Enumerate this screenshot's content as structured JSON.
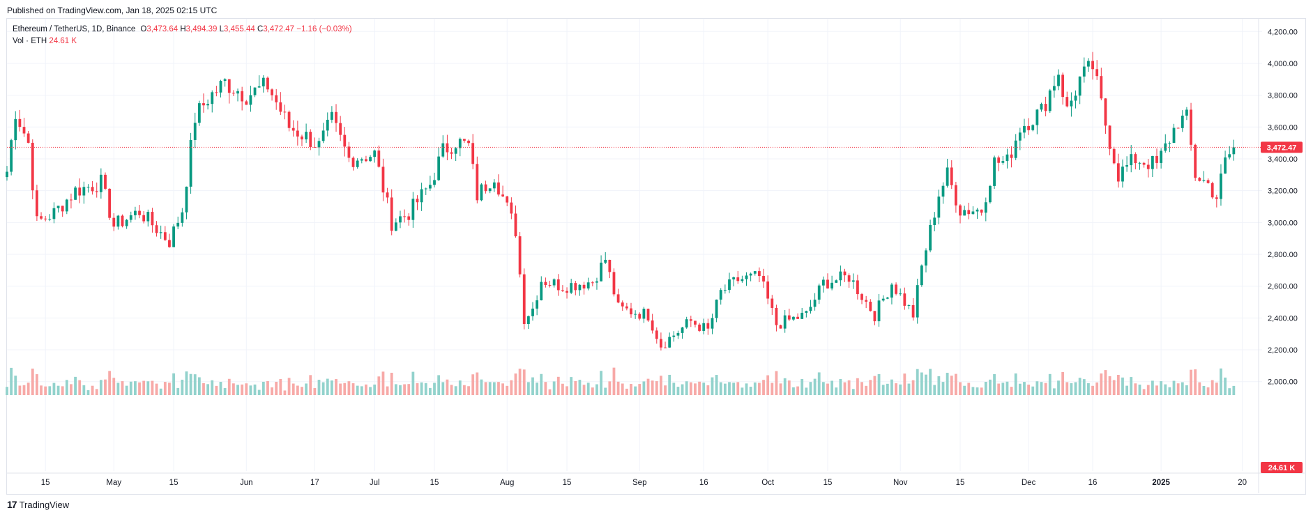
{
  "published": "Published on TradingView.com, Jan 18, 2025 02:15 UTC",
  "legend": {
    "symbol": "Ethereum / TetherUS, 1D, Binance",
    "o_label": "O",
    "o": "3,473.64",
    "h_label": "H",
    "h": "3,494.39",
    "l_label": "L",
    "l": "3,455.44",
    "c_label": "C",
    "c": "3,472.47",
    "change": "−1.16 (−0.03%)",
    "vol_label": "Vol · ETH",
    "vol": "24.61 K"
  },
  "footer": {
    "logo_mark": "17",
    "logo_text": "TradingView"
  },
  "colors": {
    "up": "#089981",
    "down": "#f23645",
    "up_vol": "#92d2cc",
    "down_vol": "#f7a9a7",
    "grid": "#f0f3fa",
    "axis_text": "#131722",
    "price_line": "#f23645"
  },
  "chart_data": {
    "type": "candlestick",
    "symbol": "Ethereum / TetherUS",
    "interval": "1D",
    "exchange": "Binance",
    "y_axis": {
      "range": [
        1920,
        4280
      ],
      "ticks": [
        "2,000.00",
        "2,200.00",
        "2,400.00",
        "2,600.00",
        "2,800.00",
        "3,000.00",
        "3,200.00",
        "3,400.00",
        "3,600.00",
        "3,800.00",
        "4,000.00",
        "4,200.00"
      ]
    },
    "x_axis": {
      "range_start": "2024-04-06",
      "range_end": "2025-01-23",
      "ticks": [
        {
          "label": "15",
          "date": "2024-04-15",
          "bold": false
        },
        {
          "label": "May",
          "date": "2024-05-01",
          "bold": false
        },
        {
          "label": "15",
          "date": "2024-05-15",
          "bold": false
        },
        {
          "label": "Jun",
          "date": "2024-06-01",
          "bold": false
        },
        {
          "label": "17",
          "date": "2024-06-17",
          "bold": false
        },
        {
          "label": "Jul",
          "date": "2024-07-01",
          "bold": false
        },
        {
          "label": "15",
          "date": "2024-07-15",
          "bold": false
        },
        {
          "label": "Aug",
          "date": "2024-08-01",
          "bold": false
        },
        {
          "label": "15",
          "date": "2024-08-15",
          "bold": false
        },
        {
          "label": "Sep",
          "date": "2024-09-01",
          "bold": false
        },
        {
          "label": "16",
          "date": "2024-09-16",
          "bold": false
        },
        {
          "label": "Oct",
          "date": "2024-10-01",
          "bold": false
        },
        {
          "label": "15",
          "date": "2024-10-15",
          "bold": false
        },
        {
          "label": "Nov",
          "date": "2024-11-01",
          "bold": false
        },
        {
          "label": "15",
          "date": "2024-11-15",
          "bold": false
        },
        {
          "label": "Dec",
          "date": "2024-12-01",
          "bold": false
        },
        {
          "label": "16",
          "date": "2024-12-16",
          "bold": false
        },
        {
          "label": "2025",
          "date": "2025-01-01",
          "bold": true
        },
        {
          "label": "20",
          "date": "2025-01-20",
          "bold": false
        }
      ]
    },
    "last_price": {
      "value": 3472.47,
      "label": "3,472.47"
    },
    "volume_label": "24.61 K",
    "anchors": [
      {
        "d": "2024-04-06",
        "p": 3320
      },
      {
        "d": "2024-04-08",
        "p": 3700
      },
      {
        "d": "2024-04-11",
        "p": 3500
      },
      {
        "d": "2024-04-13",
        "p": 3000
      },
      {
        "d": "2024-04-17",
        "p": 3060
      },
      {
        "d": "2024-04-22",
        "p": 3200
      },
      {
        "d": "2024-04-28",
        "p": 3250
      },
      {
        "d": "2024-05-01",
        "p": 2980
      },
      {
        "d": "2024-05-07",
        "p": 3070
      },
      {
        "d": "2024-05-14",
        "p": 2880
      },
      {
        "d": "2024-05-17",
        "p": 3080
      },
      {
        "d": "2024-05-20",
        "p": 3660
      },
      {
        "d": "2024-05-23",
        "p": 3780
      },
      {
        "d": "2024-05-27",
        "p": 3880
      },
      {
        "d": "2024-06-01",
        "p": 3800
      },
      {
        "d": "2024-06-06",
        "p": 3860
      },
      {
        "d": "2024-06-11",
        "p": 3600
      },
      {
        "d": "2024-06-15",
        "p": 3540
      },
      {
        "d": "2024-06-18",
        "p": 3480
      },
      {
        "d": "2024-06-21",
        "p": 3640
      },
      {
        "d": "2024-06-25",
        "p": 3400
      },
      {
        "d": "2024-07-01",
        "p": 3430
      },
      {
        "d": "2024-07-05",
        "p": 3000
      },
      {
        "d": "2024-07-09",
        "p": 3060
      },
      {
        "d": "2024-07-14",
        "p": 3240
      },
      {
        "d": "2024-07-17",
        "p": 3450
      },
      {
        "d": "2024-07-20",
        "p": 3510
      },
      {
        "d": "2024-07-23",
        "p": 3480
      },
      {
        "d": "2024-07-25",
        "p": 3170
      },
      {
        "d": "2024-07-29",
        "p": 3300
      },
      {
        "d": "2024-08-03",
        "p": 2950
      },
      {
        "d": "2024-08-05",
        "p": 2400
      },
      {
        "d": "2024-08-07",
        "p": 2460
      },
      {
        "d": "2024-08-09",
        "p": 2640
      },
      {
        "d": "2024-08-14",
        "p": 2600
      },
      {
        "d": "2024-08-21",
        "p": 2630
      },
      {
        "d": "2024-08-24",
        "p": 2770
      },
      {
        "d": "2024-08-27",
        "p": 2460
      },
      {
        "d": "2024-09-03",
        "p": 2420
      },
      {
        "d": "2024-09-06",
        "p": 2230
      },
      {
        "d": "2024-09-13",
        "p": 2380
      },
      {
        "d": "2024-09-17",
        "p": 2320
      },
      {
        "d": "2024-09-20",
        "p": 2560
      },
      {
        "d": "2024-09-24",
        "p": 2640
      },
      {
        "d": "2024-09-29",
        "p": 2660
      },
      {
        "d": "2024-10-03",
        "p": 2360
      },
      {
        "d": "2024-10-10",
        "p": 2420
      },
      {
        "d": "2024-10-14",
        "p": 2620
      },
      {
        "d": "2024-10-20",
        "p": 2660
      },
      {
        "d": "2024-10-26",
        "p": 2420
      },
      {
        "d": "2024-10-30",
        "p": 2620
      },
      {
        "d": "2024-11-04",
        "p": 2420
      },
      {
        "d": "2024-11-06",
        "p": 2720
      },
      {
        "d": "2024-11-10",
        "p": 3180
      },
      {
        "d": "2024-11-12",
        "p": 3300
      },
      {
        "d": "2024-11-15",
        "p": 3080
      },
      {
        "d": "2024-11-20",
        "p": 3080
      },
      {
        "d": "2024-11-23",
        "p": 3380
      },
      {
        "d": "2024-11-26",
        "p": 3380
      },
      {
        "d": "2024-11-29",
        "p": 3600
      },
      {
        "d": "2024-12-04",
        "p": 3700
      },
      {
        "d": "2024-12-08",
        "p": 3950
      },
      {
        "d": "2024-12-10",
        "p": 3700
      },
      {
        "d": "2024-12-13",
        "p": 3900
      },
      {
        "d": "2024-12-16",
        "p": 3980
      },
      {
        "d": "2024-12-19",
        "p": 3620
      },
      {
        "d": "2024-12-22",
        "p": 3300
      },
      {
        "d": "2024-12-26",
        "p": 3400
      },
      {
        "d": "2024-12-31",
        "p": 3360
      },
      {
        "d": "2025-01-05",
        "p": 3640
      },
      {
        "d": "2025-01-07",
        "p": 3650
      },
      {
        "d": "2025-01-09",
        "p": 3300
      },
      {
        "d": "2025-01-12",
        "p": 3240
      },
      {
        "d": "2025-01-14",
        "p": 3160
      },
      {
        "d": "2025-01-16",
        "p": 3380
      },
      {
        "d": "2025-01-18",
        "p": 3472
      }
    ],
    "volume_scale_max": 1.0
  }
}
